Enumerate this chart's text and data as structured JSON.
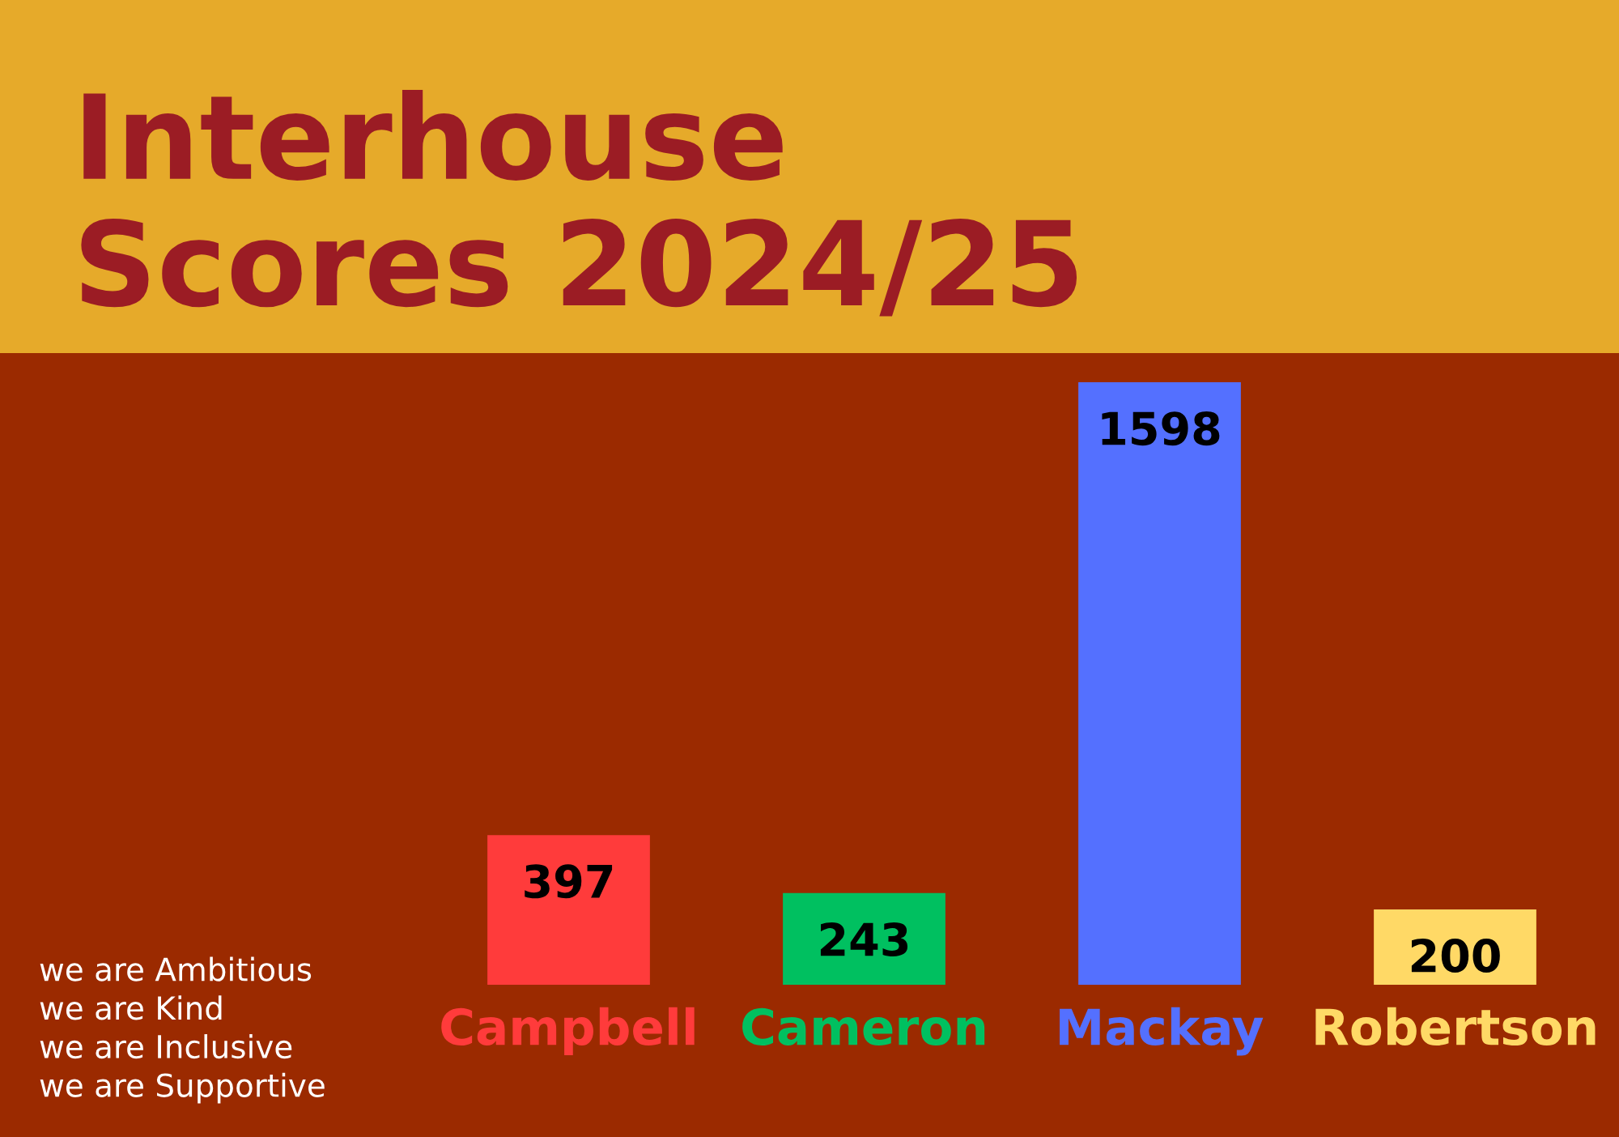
{
  "chart_data": {
    "type": "bar",
    "title": "Interhouse\nScores 2024/25",
    "categories": [
      "Campbell",
      "Cameron",
      "Mackay",
      "Robertson"
    ],
    "values": [
      397,
      243,
      1598,
      200
    ],
    "colors": [
      "#ff3b3b",
      "#00c060",
      "#5470ff",
      "#ffd966"
    ],
    "data_labels": true,
    "grid": false,
    "legend": false,
    "annotations": [
      "we are Ambitious",
      "we are Kind",
      "we are Inclusive",
      "we are Supportive"
    ]
  }
}
